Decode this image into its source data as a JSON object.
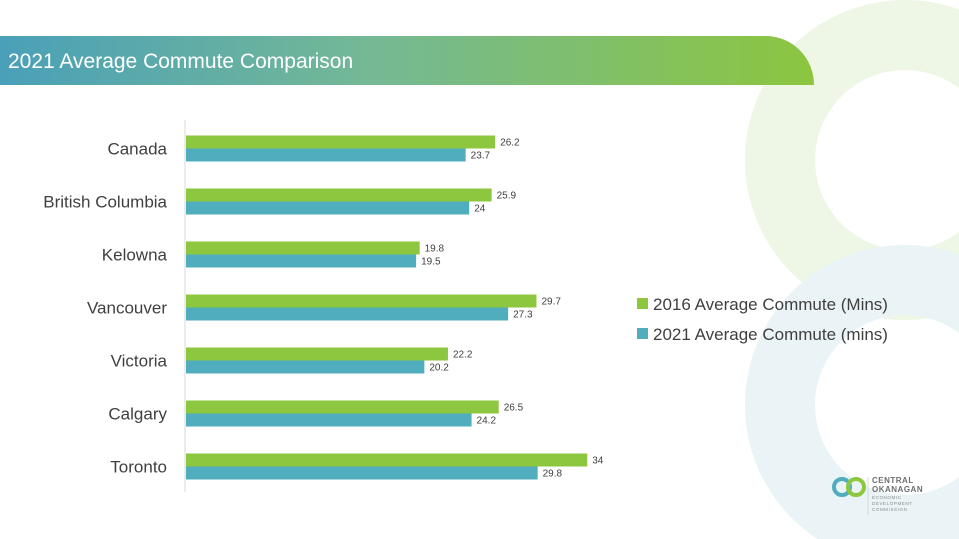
{
  "slide": {
    "title": "2021 Average Commute Comparison"
  },
  "colors": {
    "series_2016": "#8dc63f",
    "series_2021": "#4fadbd",
    "title_bar_start": "#4aa0b8",
    "title_bar_end": "#8cc63f"
  },
  "chart_data": {
    "type": "bar",
    "orientation": "horizontal",
    "categories": [
      "Canada",
      "British Columbia",
      "Kelowna",
      "Vancouver",
      "Victoria",
      "Calgary",
      "Toronto"
    ],
    "series": [
      {
        "name": "2016 Average Commute (Mins)",
        "color": "#8dc63f",
        "values": [
          26.2,
          25.9,
          19.8,
          29.7,
          22.2,
          26.5,
          34
        ]
      },
      {
        "name": "2021 Average Commute (mins)",
        "color": "#4fadbd",
        "values": [
          23.7,
          24,
          19.5,
          27.3,
          20.2,
          24.2,
          29.8
        ]
      }
    ],
    "title": "",
    "xlabel": "",
    "ylabel": "",
    "xlim": [
      0,
      36
    ],
    "grid": false,
    "legend_position": "right",
    "data_labels": true
  },
  "logo": {
    "line1": "CENTRAL",
    "line2": "OKANAGAN",
    "line3": "ECONOMIC",
    "line4": "DEVELOPMENT",
    "line5": "COMMISSION"
  }
}
